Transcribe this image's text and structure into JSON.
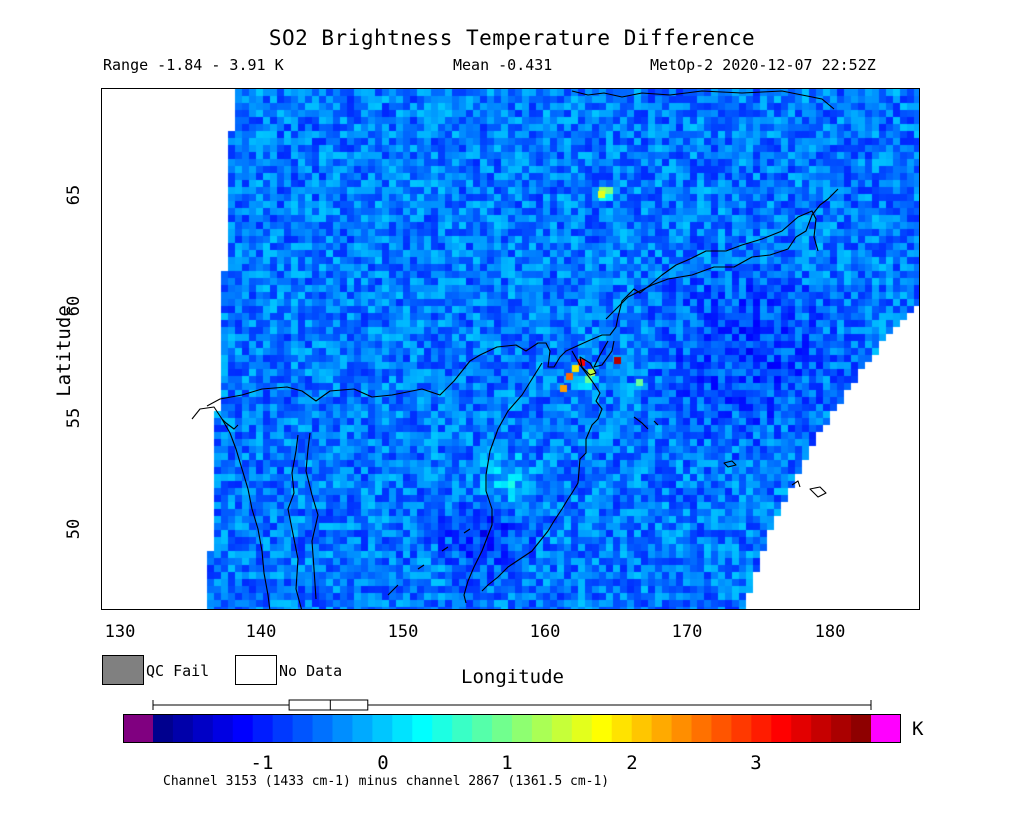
{
  "header": {
    "title": "SO2 Brightness Temperature Difference",
    "range": "Range -1.84 - 3.91 K",
    "mean": "Mean -0.431",
    "satellite": "MetOp-2 2020-12-07 22:52Z"
  },
  "map": {
    "x_axis_label": "Longitude",
    "y_axis_label": "Latitude",
    "x_ticks": [
      "130",
      "140",
      "150",
      "160",
      "170",
      "180"
    ],
    "y_ticks": [
      "50",
      "55",
      "60",
      "65"
    ],
    "lon_range": [
      129.5,
      186
    ],
    "lat_range": [
      46.5,
      70
    ]
  },
  "legend": {
    "qc_fail_label": "QC Fail",
    "no_data_label": "No Data",
    "qc_fail_color": "#808080",
    "no_data_color": "#ffffff"
  },
  "colorbar": {
    "ticks": [
      "-1",
      "0",
      "1",
      "2",
      "3"
    ],
    "unit": "K",
    "range": [
      -1.84,
      3.91
    ],
    "underflow_color": "#800080",
    "overflow_color": "#ff00ff",
    "boxplot": {
      "min": -1.84,
      "q1": -0.75,
      "median": -0.42,
      "q3": -0.12,
      "max": 3.91
    }
  },
  "footer": {
    "channel_note": "Channel 3153 (1433 cm-1) minus channel 2867 (1361.5 cm-1)"
  }
}
